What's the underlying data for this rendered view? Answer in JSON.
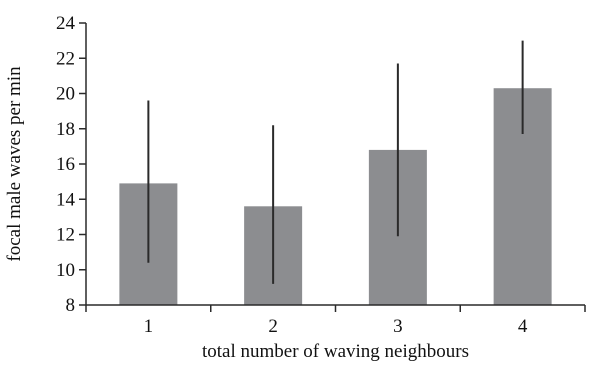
{
  "chart_data": {
    "type": "bar",
    "categories": [
      "1",
      "2",
      "3",
      "4"
    ],
    "values": [
      14.9,
      13.6,
      16.8,
      20.3
    ],
    "error_bars": [
      {
        "lower": 10.4,
        "upper": 19.6
      },
      {
        "lower": 9.2,
        "upper": 18.2
      },
      {
        "lower": 11.9,
        "upper": 21.7
      },
      {
        "lower": 17.7,
        "upper": 23.0
      }
    ],
    "title": "",
    "xlabel": "total number of waving neighbours",
    "ylabel": "focal male waves per min",
    "ylim": [
      8,
      24
    ],
    "yticks": [
      8,
      10,
      12,
      14,
      16,
      18,
      20,
      22,
      24
    ],
    "grid": false,
    "colors": {
      "bar": "#8c8d90",
      "error_bar": "#2a2a2a",
      "axis": "#2a2a2a",
      "text": "#111111"
    }
  }
}
